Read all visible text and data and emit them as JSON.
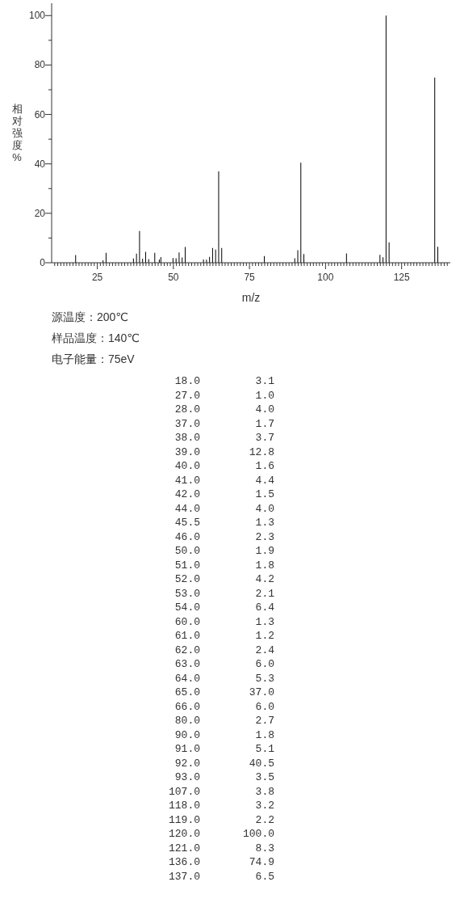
{
  "chart_data": [
    {
      "type": "bar",
      "xlabel": "m/z",
      "ylabel": "相对强度%",
      "x": [
        18.0,
        27.0,
        28.0,
        37.0,
        38.0,
        39.0,
        40.0,
        41.0,
        42.0,
        44.0,
        45.5,
        46.0,
        50.0,
        51.0,
        52.0,
        53.0,
        54.0,
        60.0,
        61.0,
        62.0,
        63.0,
        64.0,
        65.0,
        66.0,
        80.0,
        90.0,
        91.0,
        92.0,
        93.0,
        107.0,
        118.0,
        119.0,
        120.0,
        121.0,
        136.0,
        137.0
      ],
      "values": [
        3.1,
        1.0,
        4.0,
        1.7,
        3.7,
        12.8,
        1.6,
        4.4,
        1.5,
        4.0,
        1.3,
        2.3,
        1.9,
        1.8,
        4.2,
        2.1,
        6.4,
        1.3,
        1.2,
        2.4,
        6.0,
        5.3,
        37.0,
        6.0,
        2.7,
        1.8,
        5.1,
        40.5,
        3.5,
        3.8,
        3.2,
        2.2,
        100.0,
        8.3,
        74.9,
        6.5
      ],
      "color": "#000000",
      "xlim": [
        10,
        141
      ],
      "xticks": [
        {
          "value": 11,
          "label": null
        },
        {
          "value": 12,
          "label": null
        },
        {
          "value": 13,
          "label": null
        },
        {
          "value": 14,
          "label": null
        },
        {
          "value": 15,
          "label": null
        },
        {
          "value": 16,
          "label": null
        },
        {
          "value": 17,
          "label": null
        },
        {
          "value": 18,
          "label": null
        },
        {
          "value": 19,
          "label": null
        },
        {
          "value": 20,
          "label": null
        },
        {
          "value": 21,
          "label": null
        },
        {
          "value": 22,
          "label": null
        },
        {
          "value": 23,
          "label": null
        },
        {
          "value": 24,
          "label": null
        },
        25,
        {
          "value": 26,
          "label": null
        },
        {
          "value": 27,
          "label": null
        },
        {
          "value": 28,
          "label": null
        },
        {
          "value": 29,
          "label": null
        },
        {
          "value": 30,
          "label": null
        },
        {
          "value": 31,
          "label": null
        },
        {
          "value": 32,
          "label": null
        },
        {
          "value": 33,
          "label": null
        },
        {
          "value": 34,
          "label": null
        },
        {
          "value": 35,
          "label": null
        },
        {
          "value": 36,
          "label": null
        },
        {
          "value": 37,
          "label": null
        },
        {
          "value": 38,
          "label": null
        },
        {
          "value": 39,
          "label": null
        },
        {
          "value": 40,
          "label": null
        },
        {
          "value": 41,
          "label": null
        },
        {
          "value": 42,
          "label": null
        },
        {
          "value": 43,
          "label": null
        },
        {
          "value": 44,
          "label": null
        },
        {
          "value": 45,
          "label": null
        },
        {
          "value": 46,
          "label": null
        },
        {
          "value": 47,
          "label": null
        },
        {
          "value": 48,
          "label": null
        },
        {
          "value": 49,
          "label": null
        },
        50,
        {
          "value": 51,
          "label": null
        },
        {
          "value": 52,
          "label": null
        },
        {
          "value": 53,
          "label": null
        },
        {
          "value": 54,
          "label": null
        },
        {
          "value": 55,
          "label": null
        },
        {
          "value": 56,
          "label": null
        },
        {
          "value": 57,
          "label": null
        },
        {
          "value": 58,
          "label": null
        },
        {
          "value": 59,
          "label": null
        },
        {
          "value": 60,
          "label": null
        },
        {
          "value": 61,
          "label": null
        },
        {
          "value": 62,
          "label": null
        },
        {
          "value": 63,
          "label": null
        },
        {
          "value": 64,
          "label": null
        },
        {
          "value": 65,
          "label": null
        },
        {
          "value": 66,
          "label": null
        },
        {
          "value": 67,
          "label": null
        },
        {
          "value": 68,
          "label": null
        },
        {
          "value": 69,
          "label": null
        },
        {
          "value": 70,
          "label": null
        },
        {
          "value": 71,
          "label": null
        },
        {
          "value": 72,
          "label": null
        },
        {
          "value": 73,
          "label": null
        },
        {
          "value": 74,
          "label": null
        },
        75,
        {
          "value": 76,
          "label": null
        },
        {
          "value": 77,
          "label": null
        },
        {
          "value": 78,
          "label": null
        },
        {
          "value": 79,
          "label": null
        },
        {
          "value": 80,
          "label": null
        },
        {
          "value": 81,
          "label": null
        },
        {
          "value": 82,
          "label": null
        },
        {
          "value": 83,
          "label": null
        },
        {
          "value": 84,
          "label": null
        },
        {
          "value": 85,
          "label": null
        },
        {
          "value": 86,
          "label": null
        },
        {
          "value": 87,
          "label": null
        },
        {
          "value": 88,
          "label": null
        },
        {
          "value": 89,
          "label": null
        },
        {
          "value": 90,
          "label": null
        },
        {
          "value": 91,
          "label": null
        },
        {
          "value": 92,
          "label": null
        },
        {
          "value": 93,
          "label": null
        },
        {
          "value": 94,
          "label": null
        },
        {
          "value": 95,
          "label": null
        },
        {
          "value": 96,
          "label": null
        },
        {
          "value": 97,
          "label": null
        },
        {
          "value": 98,
          "label": null
        },
        {
          "value": 99,
          "label": null
        },
        100,
        {
          "value": 101,
          "label": null
        },
        {
          "value": 102,
          "label": null
        },
        {
          "value": 103,
          "label": null
        },
        {
          "value": 104,
          "label": null
        },
        {
          "value": 105,
          "label": null
        },
        {
          "value": 106,
          "label": null
        },
        {
          "value": 107,
          "label": null
        },
        {
          "value": 108,
          "label": null
        },
        {
          "value": 109,
          "label": null
        },
        {
          "value": 110,
          "label": null
        },
        {
          "value": 111,
          "label": null
        },
        {
          "value": 112,
          "label": null
        },
        {
          "value": 113,
          "label": null
        },
        {
          "value": 114,
          "label": null
        },
        {
          "value": 115,
          "label": null
        },
        {
          "value": 116,
          "label": null
        },
        {
          "value": 117,
          "label": null
        },
        {
          "value": 118,
          "label": null
        },
        {
          "value": 119,
          "label": null
        },
        {
          "value": 120,
          "label": null
        },
        {
          "value": 121,
          "label": null
        },
        {
          "value": 122,
          "label": null
        },
        {
          "value": 123,
          "label": null
        },
        {
          "value": 124,
          "label": null
        },
        125,
        {
          "value": 126,
          "label": null
        },
        {
          "value": 127,
          "label": null
        },
        {
          "value": 128,
          "label": null
        },
        {
          "value": 129,
          "label": null
        },
        {
          "value": 130,
          "label": null
        },
        {
          "value": 131,
          "label": null
        },
        {
          "value": 132,
          "label": null
        },
        {
          "value": 133,
          "label": null
        },
        {
          "value": 134,
          "label": null
        },
        {
          "value": 135,
          "label": null
        },
        {
          "value": 136,
          "label": null
        },
        {
          "value": 137,
          "label": null
        },
        {
          "value": 138,
          "label": null
        },
        {
          "value": 139,
          "label": null
        },
        {
          "value": 140,
          "label": null
        }
      ],
      "ylim": [
        0,
        105
      ],
      "yticks": [
        0,
        {
          "value": 10,
          "label": null
        },
        20,
        {
          "value": 30,
          "label": null
        },
        40,
        {
          "value": 50,
          "label": null
        },
        60,
        {
          "value": 70,
          "label": null
        },
        80,
        {
          "value": 90,
          "label": null
        },
        100
      ],
      "annotations": [
        "源温度：200℃",
        "样品温度：140℃",
        "电子能量：75eV"
      ]
    },
    {
      "type": "other",
      "categories": [
        "18.0",
        "27.0",
        "28.0",
        "37.0",
        "38.0",
        "39.0",
        "40.0",
        "41.0",
        "42.0",
        "44.0",
        "45.5",
        "46.0",
        "50.0",
        "51.0",
        "52.0",
        "53.0",
        "54.0",
        "60.0",
        "61.0",
        "62.0",
        "63.0",
        "64.0",
        "65.0",
        "66.0",
        "80.0",
        "90.0",
        "91.0",
        "92.0",
        "93.0",
        "107.0",
        "118.0",
        "119.0",
        "120.0",
        "121.0",
        "136.0",
        "137.0"
      ],
      "value_labels": [
        "3.1",
        "1.0",
        "4.0",
        "1.7",
        "3.7",
        "12.8",
        "1.6",
        "4.4",
        "1.5",
        "4.0",
        "1.3",
        "2.3",
        "1.9",
        "1.8",
        "4.2",
        "2.1",
        "6.4",
        "1.3",
        "1.2",
        "2.4",
        "6.0",
        "5.3",
        "37.0",
        "6.0",
        "2.7",
        "1.8",
        "5.1",
        "40.5",
        "3.5",
        "3.8",
        "3.2",
        "2.2",
        "100.0",
        "8.3",
        "74.9",
        "6.5"
      ]
    }
  ]
}
